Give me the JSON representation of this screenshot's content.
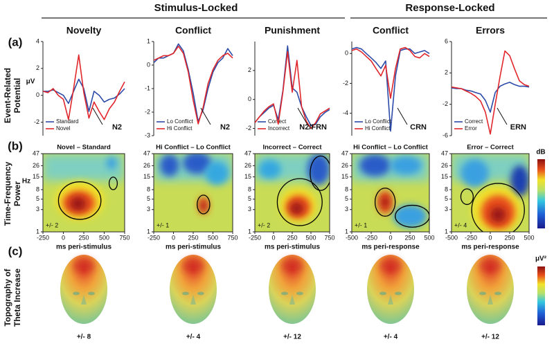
{
  "figure": {
    "headers": [
      "Stimulus-Locked",
      "Response-Locked"
    ],
    "panel_labels": [
      "(a)",
      "(b)",
      "(c)"
    ],
    "row_labels": [
      [
        "Event-Related",
        "Potential"
      ],
      [
        "Time-Frequency",
        "Power"
      ],
      [
        "Topography of",
        "Theta Increase"
      ]
    ],
    "tf_colorbar_label": "dB",
    "topo_colorbar_label": "μV²"
  },
  "chart_data": [
    {
      "type": "line",
      "title": "Novelty",
      "ylabel": "μV",
      "annotation": "N2",
      "x": [
        -250,
        -188,
        -125,
        -63,
        0,
        63,
        125,
        188,
        250,
        313,
        375,
        438,
        500,
        563,
        625,
        688,
        750
      ],
      "xlim": [
        -250,
        750
      ],
      "ylim": [
        -3,
        4
      ],
      "yticks": [
        -2,
        0,
        2,
        4
      ],
      "series": [
        {
          "name": "Standard",
          "color": "#2b4aa8",
          "values": [
            0.3,
            0.3,
            0.4,
            0.2,
            0,
            -0.6,
            0.3,
            1.2,
            0.5,
            -1.2,
            0.3,
            0,
            -0.5,
            -0.3,
            -0.2,
            0.1,
            0.5
          ]
        },
        {
          "name": "Novel",
          "color": "#e0262b",
          "values": [
            0.3,
            0.2,
            0.5,
            0,
            -0.3,
            -1.8,
            0.5,
            3,
            0.2,
            -1.7,
            -0.5,
            -1.2,
            -1.8,
            -1,
            -0.5,
            0.3,
            1
          ]
        }
      ],
      "tf": {
        "subtitle": "Novel – Standard",
        "xticks": [
          -250,
          0,
          250,
          500,
          750
        ],
        "xlabel": "ms peri-stimulus",
        "ylabel": "Hz",
        "ylim": [
          1,
          47
        ],
        "yticks": [
          1,
          3,
          5,
          8,
          15,
          26,
          47
        ],
        "log_scale": true,
        "scale": "+/- 2"
      },
      "topography_scale": "+/- 8"
    },
    {
      "type": "line",
      "title": "Conflict",
      "annotation": "N2",
      "x": [
        -250,
        -188,
        -125,
        -63,
        0,
        63,
        125,
        188,
        250,
        313,
        375,
        438,
        500,
        563,
        625,
        688,
        750
      ],
      "xlim": [
        -250,
        750
      ],
      "ylim": [
        -3,
        1
      ],
      "yticks": [
        -3,
        -2,
        -1,
        0,
        1
      ],
      "series": [
        {
          "name": "Lo Conflict",
          "color": "#2b4aa8",
          "values": [
            0.1,
            0.3,
            0.3,
            0.4,
            0.5,
            0.9,
            0.6,
            -0.2,
            -1.2,
            -2.4,
            -1.9,
            -1,
            -0.3,
            0.1,
            0.3,
            0.7,
            0.4
          ]
        },
        {
          "name": "Hi Conflict",
          "color": "#e0262b",
          "values": [
            0.2,
            0.3,
            0.4,
            0.4,
            0.5,
            0.8,
            0.5,
            -0.3,
            -1.5,
            -2.5,
            -1.8,
            -0.8,
            -0.2,
            0.2,
            0.4,
            0.5,
            0.3
          ]
        }
      ],
      "tf": {
        "subtitle": "Hi Conflict – Lo Conflict",
        "xticks": [
          -250,
          0,
          250,
          500,
          750
        ],
        "xlabel": "ms peri-stimulus",
        "ylim": [
          1,
          47
        ],
        "yticks": [
          1,
          3,
          5,
          8,
          15,
          26,
          47
        ],
        "log_scale": true,
        "scale": "+/- 1"
      },
      "topography_scale": "+/- 4"
    },
    {
      "type": "line",
      "title": "Punishment",
      "annotation": "N2/FRN",
      "x": [
        -250,
        -188,
        -125,
        -63,
        0,
        63,
        125,
        188,
        250,
        313,
        375,
        438,
        500,
        563,
        625,
        688,
        750
      ],
      "xlim": [
        -250,
        750
      ],
      "ylim": [
        -2.5,
        4
      ],
      "yticks": [
        -2,
        0,
        2
      ],
      "series": [
        {
          "name": "Correct",
          "color": "#2b4aa8",
          "values": [
            -1.6,
            -1.2,
            -0.9,
            -0.6,
            -0.4,
            -1.4,
            0.6,
            3.7,
            0.8,
            0.5,
            -0.5,
            -1.2,
            -1.8,
            -1.7,
            -1.2,
            -0.9,
            -0.7
          ]
        },
        {
          "name": "Incorrect",
          "color": "#e0262b",
          "values": [
            -1.6,
            -1.2,
            -0.8,
            -0.5,
            -0.3,
            -1.7,
            0.5,
            3.3,
            0.5,
            2.7,
            -0.5,
            -1.5,
            -2,
            -1.6,
            -1,
            -0.8,
            -0.6
          ]
        }
      ],
      "tf": {
        "subtitle": "Incorrect – Correct",
        "xticks": [
          -250,
          0,
          250,
          500,
          750
        ],
        "xlabel": "ms peri-stimulus",
        "ylim": [
          1,
          47
        ],
        "yticks": [
          1,
          3,
          5,
          8,
          15,
          26,
          47
        ],
        "log_scale": true,
        "scale": "+/- 2"
      },
      "topography_scale": "+/- 12"
    },
    {
      "type": "line",
      "title": "Conflict",
      "annotation": "CRN",
      "x": [
        -500,
        -438,
        -375,
        -313,
        -250,
        -188,
        -125,
        -63,
        0,
        63,
        125,
        188,
        250,
        313,
        375,
        438,
        500
      ],
      "xlim": [
        -500,
        500
      ],
      "ylim": [
        -5.5,
        0.8
      ],
      "yticks": [
        -4,
        -2,
        0
      ],
      "series": [
        {
          "name": "Lo Conflict",
          "color": "#2b4aa8",
          "values": [
            0.3,
            0.4,
            0.3,
            0,
            -0.3,
            -0.6,
            -1,
            -0.5,
            -5.2,
            -1.5,
            0.2,
            0.3,
            0.3,
            0,
            0.1,
            0.2,
            0
          ]
        },
        {
          "name": "Hi Conflict",
          "color": "#e0262b",
          "values": [
            0.2,
            0.3,
            0.1,
            -0.2,
            -0.5,
            -1,
            -1.5,
            -0.8,
            -3,
            -1,
            0.3,
            0.4,
            0.2,
            -0.2,
            -0.3,
            0,
            -0.2
          ]
        }
      ],
      "tf": {
        "subtitle": "Hi Conflict – Lo Conflict",
        "xticks": [
          -500,
          -250,
          0,
          250,
          500
        ],
        "xlabel": "ms peri-response",
        "ylim": [
          1,
          47
        ],
        "yticks": [
          1,
          3,
          5,
          8,
          15,
          26,
          47
        ],
        "log_scale": true,
        "scale": "+/- 1"
      },
      "topography_scale": "+/- 4"
    },
    {
      "type": "line",
      "title": "Errors",
      "annotation": "ERN",
      "x": [
        -500,
        -438,
        -375,
        -313,
        -250,
        -188,
        -125,
        -63,
        0,
        63,
        125,
        188,
        250,
        313,
        375,
        438,
        500
      ],
      "xlim": [
        -500,
        500
      ],
      "ylim": [
        -6,
        6
      ],
      "yticks": [
        -6,
        -2,
        2,
        6
      ],
      "series": [
        {
          "name": "Correct",
          "color": "#2b4aa8",
          "values": [
            0.1,
            0,
            0,
            -0.2,
            -0.3,
            -0.5,
            -0.7,
            -1.5,
            -3,
            -0.5,
            0.3,
            0.6,
            0.8,
            0.5,
            0.3,
            0.3,
            0.2
          ]
        },
        {
          "name": "Error",
          "color": "#e0262b",
          "values": [
            0.2,
            0.1,
            0,
            -0.3,
            -0.6,
            -1,
            -1.6,
            -3,
            -5.8,
            -2,
            1.5,
            4.8,
            4.2,
            2.5,
            1,
            0.5,
            0.3
          ]
        }
      ],
      "tf": {
        "subtitle": "Error – Correct",
        "xticks": [
          -500,
          -250,
          0,
          250,
          500
        ],
        "xlabel": "ms peri-response",
        "ylim": [
          1,
          47
        ],
        "yticks": [
          1,
          3,
          5,
          8,
          15,
          26,
          47
        ],
        "log_scale": true,
        "scale": "+/- 4"
      },
      "topography_scale": "+/- 12"
    }
  ]
}
